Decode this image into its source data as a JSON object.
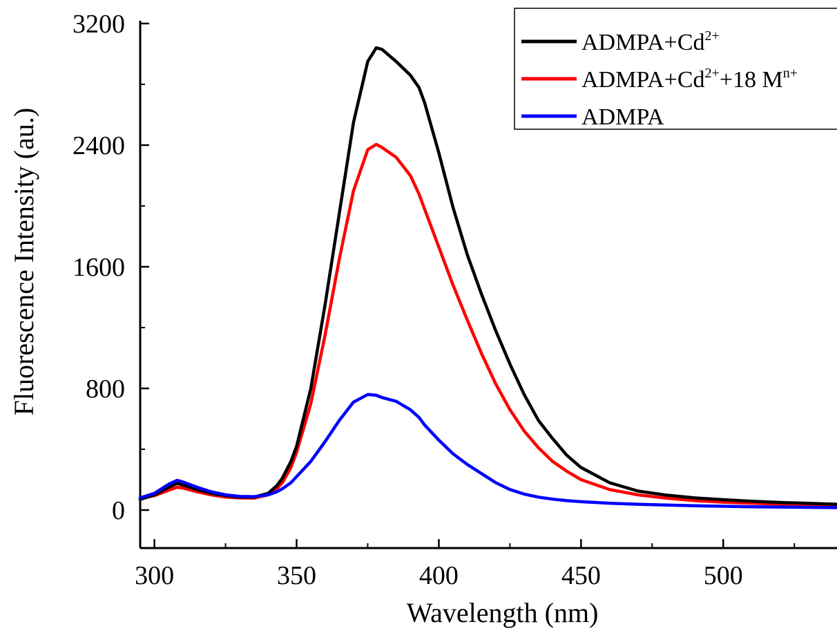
{
  "chart_data": {
    "type": "line",
    "title": "",
    "xlabel": "Wavelength (nm)",
    "ylabel": "Fluorescence Intensity (au.)",
    "xlim": [
      295,
      540
    ],
    "ylim": [
      -250,
      3200
    ],
    "xticks": [
      300,
      350,
      400,
      450,
      500
    ],
    "xtick_labels": [
      "300",
      "350",
      "400",
      "450",
      "500"
    ],
    "yticks": [
      0,
      800,
      1600,
      2400,
      3200
    ],
    "ytick_labels": [
      "0",
      "800",
      "1600",
      "2400",
      "3200"
    ],
    "grid": false,
    "legend_position": "top-right",
    "series": [
      {
        "name": "ADMPA+Cd2++18 Mn+",
        "legend": {
          "base": "ADMPA+Cd",
          "sup1": "2+",
          "mid": "+18 M",
          "sup2": "n+"
        },
        "color": "#ff0000",
        "x": [
          295,
          300,
          305,
          308,
          310,
          315,
          320,
          325,
          330,
          335,
          340,
          343,
          345,
          348,
          350,
          355,
          360,
          365,
          370,
          375,
          378,
          380,
          385,
          390,
          393,
          395,
          400,
          405,
          410,
          415,
          420,
          425,
          430,
          435,
          440,
          445,
          450,
          460,
          470,
          480,
          490,
          500,
          510,
          520,
          530,
          540
        ],
        "y": [
          75,
          95,
          130,
          150,
          145,
          120,
          100,
          85,
          80,
          78,
          100,
          140,
          180,
          280,
          380,
          700,
          1150,
          1650,
          2100,
          2370,
          2405,
          2385,
          2320,
          2200,
          2080,
          1980,
          1730,
          1480,
          1250,
          1030,
          830,
          660,
          520,
          410,
          320,
          255,
          200,
          135,
          100,
          78,
          62,
          52,
          45,
          40,
          36,
          32
        ]
      },
      {
        "name": "ADMPA+Cd2+",
        "legend": {
          "base": "ADMPA+Cd",
          "sup1": "2+",
          "mid": "",
          "sup2": ""
        },
        "color": "#000000",
        "x": [
          295,
          300,
          305,
          308,
          310,
          315,
          320,
          325,
          330,
          335,
          340,
          343,
          345,
          348,
          350,
          355,
          360,
          365,
          370,
          375,
          378,
          380,
          385,
          390,
          393,
          395,
          400,
          405,
          410,
          415,
          420,
          425,
          430,
          435,
          440,
          445,
          450,
          460,
          470,
          480,
          490,
          500,
          510,
          520,
          530,
          540
        ],
        "y": [
          70,
          100,
          150,
          175,
          165,
          135,
          110,
          95,
          85,
          85,
          110,
          160,
          210,
          320,
          420,
          800,
          1350,
          1950,
          2550,
          2950,
          3040,
          3030,
          2950,
          2860,
          2780,
          2680,
          2350,
          1990,
          1680,
          1420,
          1180,
          960,
          760,
          590,
          470,
          360,
          280,
          180,
          125,
          98,
          80,
          68,
          58,
          50,
          44,
          38
        ]
      },
      {
        "name": "ADMPA",
        "legend": {
          "base": "ADMPA",
          "sup1": "",
          "mid": "",
          "sup2": ""
        },
        "color": "#0000ff",
        "x": [
          295,
          300,
          305,
          308,
          310,
          315,
          320,
          325,
          330,
          335,
          340,
          343,
          345,
          348,
          350,
          355,
          360,
          365,
          370,
          375,
          378,
          380,
          385,
          390,
          393,
          395,
          400,
          405,
          410,
          415,
          420,
          425,
          430,
          435,
          440,
          445,
          450,
          460,
          470,
          480,
          490,
          500,
          510,
          520,
          530,
          540
        ],
        "y": [
          80,
          110,
          170,
          195,
          185,
          150,
          120,
          100,
          90,
          88,
          100,
          120,
          140,
          180,
          220,
          320,
          450,
          590,
          710,
          760,
          755,
          740,
          715,
          660,
          610,
          560,
          460,
          370,
          300,
          240,
          180,
          135,
          105,
          85,
          72,
          62,
          55,
          45,
          38,
          33,
          28,
          25,
          22,
          20,
          18,
          16
        ]
      }
    ]
  }
}
